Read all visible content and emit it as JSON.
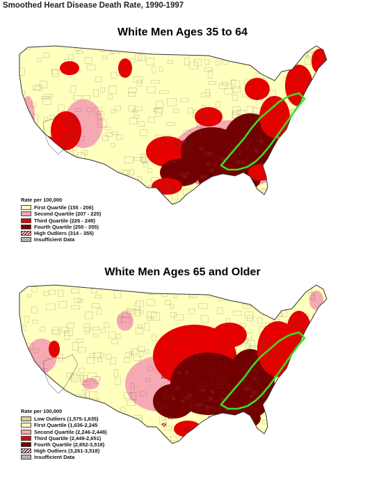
{
  "page_title": "Smoothed Heart Disease Death Rate, 1990-1997",
  "colors": {
    "low": "#d7d28a",
    "q1": "#ffffbe",
    "q2": "#f5a9b3",
    "q3": "#e60000",
    "q4": "#730000",
    "outlier": "#8b1a1a",
    "insufficient": "#b2b2b2",
    "boundary": "#3cdc28"
  },
  "panels": [
    {
      "title": "White Men Ages 35 to 64",
      "legend_heading": "Rate per 100,000",
      "legend": [
        {
          "label": "First Quartile (155 - 206)",
          "color": "#ffffbe",
          "hatch": false
        },
        {
          "label": "Second Quartile (207 - 225)",
          "color": "#f5a9b3",
          "hatch": false
        },
        {
          "label": "Third Quartile (226 - 249)",
          "color": "#e60000",
          "hatch": false
        },
        {
          "label": "Fourth Quartile (250 - 355)",
          "color": "#730000",
          "hatch": false
        },
        {
          "label": "High Outliers (314 - 355)",
          "color": "#ffffff",
          "hatch": true
        },
        {
          "label": "Insufficient Data",
          "color": "#b2b2b2",
          "hatch": false
        }
      ]
    },
    {
      "title": "White Men Ages 65 and Older",
      "legend_heading": "Rate per 100,000",
      "legend": [
        {
          "label": "Low Outliers (1,575-1,635)",
          "color": "#d7d28a",
          "hatch": false
        },
        {
          "label": "First Quartile (1,636-2,245",
          "color": "#ffffbe",
          "hatch": false
        },
        {
          "label": "Second Quartile (2,246-2,448)",
          "color": "#f5a9b3",
          "hatch": false
        },
        {
          "label": "Third Quartile (2,449-2,651)",
          "color": "#e60000",
          "hatch": false
        },
        {
          "label": "Fourth Quartile (2,652-3,518)",
          "color": "#730000",
          "hatch": false
        },
        {
          "label": "High Outliers (3,261-3,518)",
          "color": "#ffffff",
          "hatch": true
        },
        {
          "label": "Insufficient Data",
          "color": "#b2b2b2",
          "hatch": false
        }
      ]
    }
  ]
}
